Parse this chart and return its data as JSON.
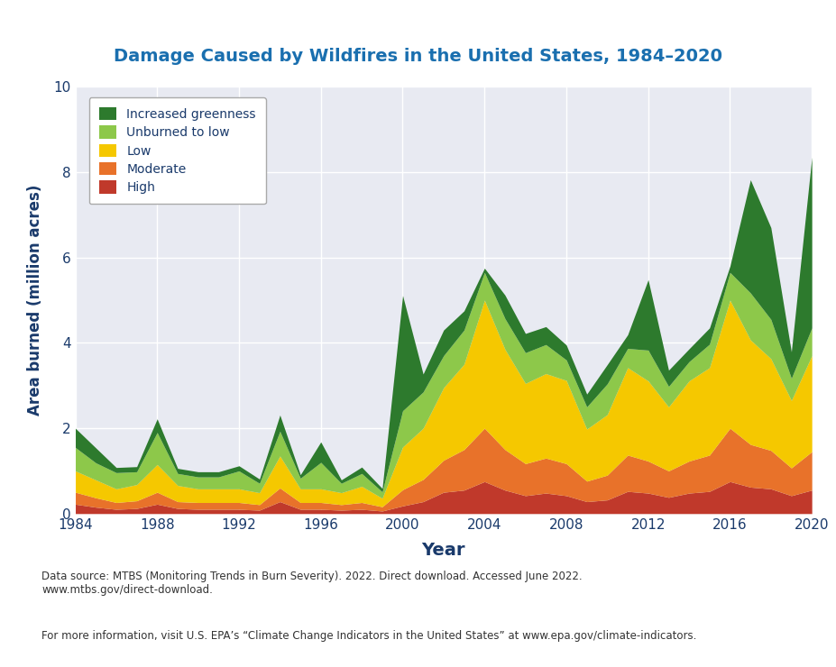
{
  "title": "Damage Caused by Wildfires in the United States, 1984–2020",
  "title_color": "#1a6faf",
  "xlabel": "Year",
  "ylabel": "Area burned (million acres)",
  "xlabel_color": "#1a3a6b",
  "ylabel_color": "#1a3a6b",
  "plot_bg_color": "#e8eaf2",
  "ylim": [
    0,
    10
  ],
  "yticks": [
    0,
    2,
    4,
    6,
    8,
    10
  ],
  "xticks": [
    1984,
    1988,
    1992,
    1996,
    2000,
    2004,
    2008,
    2012,
    2016,
    2020
  ],
  "years": [
    1984,
    1985,
    1986,
    1987,
    1988,
    1989,
    1990,
    1991,
    1992,
    1993,
    1994,
    1995,
    1996,
    1997,
    1998,
    1999,
    2000,
    2001,
    2002,
    2003,
    2004,
    2005,
    2006,
    2007,
    2008,
    2009,
    2010,
    2011,
    2012,
    2013,
    2014,
    2015,
    2016,
    2017,
    2018,
    2019,
    2020
  ],
  "high": [
    0.22,
    0.15,
    0.1,
    0.12,
    0.22,
    0.12,
    0.1,
    0.1,
    0.1,
    0.08,
    0.28,
    0.1,
    0.1,
    0.08,
    0.1,
    0.06,
    0.18,
    0.28,
    0.5,
    0.55,
    0.75,
    0.55,
    0.42,
    0.48,
    0.42,
    0.28,
    0.32,
    0.52,
    0.48,
    0.38,
    0.48,
    0.52,
    0.75,
    0.62,
    0.58,
    0.42,
    0.55
  ],
  "moderate": [
    0.28,
    0.22,
    0.16,
    0.18,
    0.28,
    0.16,
    0.16,
    0.16,
    0.16,
    0.13,
    0.32,
    0.16,
    0.16,
    0.13,
    0.16,
    0.1,
    0.38,
    0.52,
    0.75,
    0.95,
    1.25,
    0.95,
    0.75,
    0.82,
    0.75,
    0.48,
    0.58,
    0.85,
    0.75,
    0.62,
    0.75,
    0.85,
    1.25,
    1.0,
    0.9,
    0.65,
    0.9
  ],
  "low": [
    0.5,
    0.42,
    0.32,
    0.38,
    0.65,
    0.38,
    0.32,
    0.32,
    0.32,
    0.28,
    0.75,
    0.32,
    0.32,
    0.28,
    0.38,
    0.2,
    1.0,
    1.2,
    1.7,
    2.0,
    3.0,
    2.35,
    1.88,
    1.98,
    1.95,
    1.22,
    1.42,
    2.05,
    1.88,
    1.5,
    1.88,
    2.05,
    3.0,
    2.45,
    2.15,
    1.58,
    2.25
  ],
  "unburned_to_low": [
    0.55,
    0.4,
    0.38,
    0.3,
    0.75,
    0.28,
    0.28,
    0.28,
    0.42,
    0.22,
    0.58,
    0.25,
    0.62,
    0.22,
    0.3,
    0.15,
    0.85,
    0.85,
    0.75,
    0.8,
    0.65,
    0.72,
    0.72,
    0.68,
    0.48,
    0.52,
    0.72,
    0.45,
    0.72,
    0.48,
    0.45,
    0.55,
    0.65,
    1.1,
    0.92,
    0.52,
    0.65
  ],
  "increased_greenness": [
    0.45,
    0.35,
    0.12,
    0.12,
    0.32,
    0.12,
    0.12,
    0.12,
    0.12,
    0.1,
    0.38,
    0.08,
    0.48,
    0.08,
    0.15,
    0.08,
    2.7,
    0.42,
    0.6,
    0.45,
    0.1,
    0.55,
    0.45,
    0.42,
    0.35,
    0.3,
    0.45,
    0.32,
    1.65,
    0.38,
    0.3,
    0.38,
    0.15,
    2.65,
    2.15,
    0.62,
    4.0
  ],
  "colors": {
    "high": "#c0392b",
    "moderate": "#e8722a",
    "low": "#f5c800",
    "unburned_to_low": "#8dc84a",
    "increased_greenness": "#2d7a2d"
  },
  "source_text": "Data source: MTBS (Monitoring Trends in Burn Severity). 2022. Direct download. Accessed June 2022.\nwww.mtbs.gov/direct-download.",
  "info_text": "For more information, visit U.S. EPA’s “Climate Change Indicators in the United States” at www.epa.gov/climate-indicators."
}
